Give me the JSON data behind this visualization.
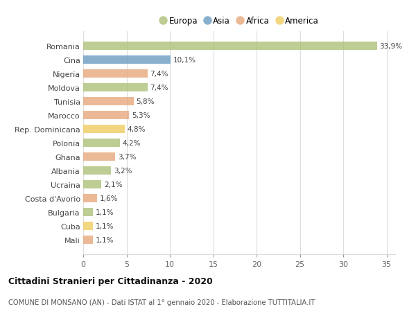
{
  "categories": [
    "Romania",
    "Cina",
    "Nigeria",
    "Moldova",
    "Tunisia",
    "Marocco",
    "Rep. Dominicana",
    "Polonia",
    "Ghana",
    "Albania",
    "Ucraina",
    "Costa d'Avorio",
    "Bulgaria",
    "Cuba",
    "Mali"
  ],
  "values": [
    33.9,
    10.1,
    7.4,
    7.4,
    5.8,
    5.3,
    4.8,
    4.2,
    3.7,
    3.2,
    2.1,
    1.6,
    1.1,
    1.1,
    1.1
  ],
  "labels": [
    "33,9%",
    "10,1%",
    "7,4%",
    "7,4%",
    "5,8%",
    "5,3%",
    "4,8%",
    "4,2%",
    "3,7%",
    "3,2%",
    "2,1%",
    "1,6%",
    "1,1%",
    "1,1%",
    "1,1%"
  ],
  "continents": [
    "Europa",
    "Asia",
    "Africa",
    "Europa",
    "Africa",
    "Africa",
    "America",
    "Europa",
    "Africa",
    "Europa",
    "Europa",
    "Africa",
    "Europa",
    "America",
    "Africa"
  ],
  "colors": {
    "Europa": "#adc178",
    "Asia": "#6b9dc2",
    "Africa": "#e8a87c",
    "America": "#f0cc60"
  },
  "legend_order": [
    "Europa",
    "Asia",
    "Africa",
    "America"
  ],
  "title": "Cittadini Stranieri per Cittadinanza - 2020",
  "subtitle": "COMUNE DI MONSANO (AN) - Dati ISTAT al 1° gennaio 2020 - Elaborazione TUTTITALIA.IT",
  "xlim": [
    0,
    36
  ],
  "xticks": [
    0,
    5,
    10,
    15,
    20,
    25,
    30,
    35
  ],
  "bg_color": "#ffffff",
  "grid_color": "#dddddd",
  "bar_alpha": 0.8,
  "bar_height": 0.6
}
